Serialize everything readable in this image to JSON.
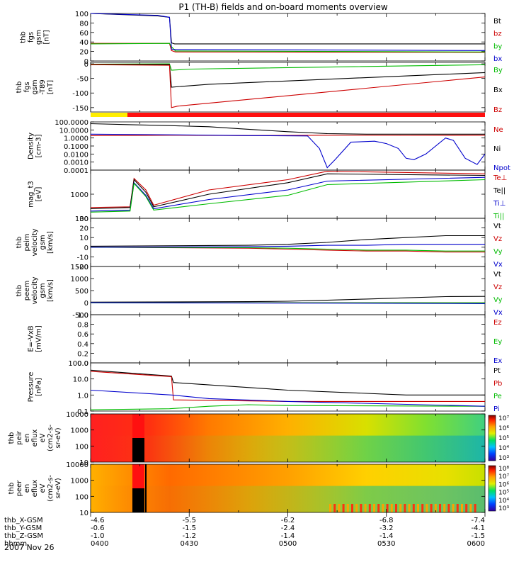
{
  "chart_data": {
    "type": "line",
    "title": "P1 (TH-B) fields and on-board moments overview",
    "date": "2007 Nov 26",
    "time_ticks": [
      "0400",
      "0430",
      "0500",
      "0530",
      "0600"
    ],
    "panels": [
      {
        "id": "fgs-gsm",
        "ylabel": [
          "thb",
          "fgs",
          "gsm",
          "[nT]"
        ],
        "scale": "linear",
        "ylim": [
          0,
          100
        ],
        "yticks": [
          "100",
          "80",
          "60",
          "40",
          "20",
          "0"
        ],
        "legend": [
          {
            "label": "Bt",
            "color": "#000000"
          },
          {
            "label": "bz",
            "color": "#cc0000"
          },
          {
            "label": "by",
            "color": "#00bb00"
          },
          {
            "label": "bx",
            "color": "#0000cc"
          }
        ],
        "series": [
          {
            "name": "Bt",
            "color": "#000000",
            "x": [
              0.0,
              0.17,
              0.2,
              0.205,
              0.213,
              1.0
            ],
            "y": [
              102,
              95,
              92,
              38,
              36,
              36
            ]
          },
          {
            "name": "bz",
            "color": "#cc0000",
            "x": [
              0.0,
              0.2,
              0.205,
              0.215,
              1.0
            ],
            "y": [
              37,
              37,
              22,
              19,
              18
            ]
          },
          {
            "name": "by",
            "color": "#00bb00",
            "x": [
              0.0,
              0.2,
              0.205,
              0.215,
              1.0
            ],
            "y": [
              36,
              37,
              30,
              21,
              19
            ]
          },
          {
            "name": "bx",
            "color": "#0000cc",
            "x": [
              0.0,
              0.17,
              0.2,
              0.205,
              0.215,
              1.0
            ],
            "y": [
              100,
              96,
              92,
              25,
              24,
              22
            ]
          }
        ]
      },
      {
        "id": "fgs-sm",
        "ylabel": [
          "thb",
          "fgs",
          "gsm",
          "-T89",
          "[nT]"
        ],
        "scale": "linear",
        "ylim": [
          -165,
          5
        ],
        "yticks": [
          "0",
          "-50",
          "-100",
          "-150"
        ],
        "legend": [
          {
            "label": "By",
            "color": "#00bb00"
          },
          {
            "label": "Bx",
            "color": "#000000"
          },
          {
            "label": "Bz",
            "color": "#cc0000"
          }
        ],
        "series": [
          {
            "name": "By",
            "color": "#00bb00",
            "x": [
              0.0,
              0.2,
              0.205,
              0.25,
              1.0
            ],
            "y": [
              -1,
              0,
              -22,
              -18,
              -3
            ]
          },
          {
            "name": "Bx",
            "color": "#000000",
            "x": [
              0.0,
              0.2,
              0.205,
              0.3,
              1.0
            ],
            "y": [
              -2,
              -2,
              -80,
              -70,
              -30
            ]
          },
          {
            "name": "Bz",
            "color": "#cc0000",
            "x": [
              0.0,
              0.2,
              0.205,
              0.22,
              1.0
            ],
            "y": [
              -3,
              -5,
              -150,
              -145,
              -45
            ]
          }
        ]
      },
      {
        "id": "density",
        "ylabel": [
          "Density",
          "[cm-3]"
        ],
        "scale": "log",
        "ylim": [
          0.0001,
          100
        ],
        "yticks": [
          "100.0000",
          "10.0000",
          "1.0000",
          "0.1000",
          "0.0100",
          "0.0010",
          "0.0001"
        ],
        "legend": [
          {
            "label": "Ne",
            "color": "#cc0000"
          },
          {
            "label": "Ni",
            "color": "#000000"
          },
          {
            "label": "Npot",
            "color": "#0000cc"
          }
        ],
        "series": [
          {
            "name": "Ni",
            "color": "#000000",
            "x": [
              0.0,
              0.1,
              0.2,
              0.3,
              0.4,
              0.5,
              0.6,
              0.7,
              0.8,
              0.9,
              1.0
            ],
            "y": [
              60,
              45,
              35,
              25,
              12,
              6,
              3.5,
              3,
              3,
              3,
              3
            ]
          },
          {
            "name": "Ne",
            "color": "#cc0000",
            "x": [
              0.0,
              0.2,
              0.4,
              0.6,
              0.8,
              1.0
            ],
            "y": [
              2,
              2.2,
              2,
              2.2,
              2.1,
              2.2
            ]
          },
          {
            "name": "Npot",
            "color": "#0000cc",
            "x": [
              0.0,
              0.2,
              0.4,
              0.55,
              0.58,
              0.6,
              0.62,
              0.66,
              0.72,
              0.75,
              0.78,
              0.8,
              0.82,
              0.85,
              0.9,
              0.92,
              0.95,
              0.98,
              1.0
            ],
            "y": [
              3,
              2.5,
              2,
              1.8,
              0.05,
              0.0002,
              0.002,
              0.3,
              0.4,
              0.2,
              0.05,
              0.003,
              0.002,
              0.01,
              1,
              0.5,
              0.003,
              0.0005,
              0.01
            ]
          }
        ]
      },
      {
        "id": "mom-temp",
        "ylabel": [
          "mag_t3",
          "[eV]"
        ],
        "scale": "log",
        "ylim": [
          100,
          10000
        ],
        "yticks": [
          "1000",
          "100"
        ],
        "legend": [
          {
            "label": "Te⊥",
            "color": "#cc0000"
          },
          {
            "label": "Te||",
            "color": "#000000"
          },
          {
            "label": "Ti⊥",
            "color": "#0000cc"
          },
          {
            "label": "Ti||",
            "color": "#00bb00"
          }
        ],
        "series": [
          {
            "name": "Te⊥",
            "color": "#cc0000",
            "x": [
              0.0,
              0.1,
              0.11,
              0.14,
              0.16,
              0.3,
              0.5,
              0.6,
              1.0
            ],
            "y": [
              280,
              300,
              4500,
              1500,
              350,
              1500,
              4000,
              9000,
              7000
            ]
          },
          {
            "name": "Te||",
            "color": "#000000",
            "x": [
              0.0,
              0.1,
              0.11,
              0.14,
              0.16,
              0.3,
              0.5,
              0.6,
              1.0
            ],
            "y": [
              250,
              280,
              4000,
              1200,
              300,
              1000,
              3000,
              7000,
              6000
            ]
          },
          {
            "name": "Ti⊥",
            "color": "#0000cc",
            "x": [
              0.0,
              0.1,
              0.11,
              0.14,
              0.16,
              0.3,
              0.5,
              0.6,
              1.0
            ],
            "y": [
              200,
              220,
              3000,
              900,
              250,
              600,
              1500,
              3500,
              5000
            ]
          },
          {
            "name": "Ti||",
            "color": "#00bb00",
            "x": [
              0.0,
              0.1,
              0.11,
              0.14,
              0.16,
              0.3,
              0.5,
              0.6,
              1.0
            ],
            "y": [
              180,
              200,
              2800,
              800,
              220,
              400,
              900,
              2500,
              4000
            ]
          }
        ]
      },
      {
        "id": "peim-gsm",
        "ylabel": [
          "thb",
          "peim",
          "velocity",
          "gsm",
          "[km/s]"
        ],
        "scale": "linear",
        "ylim": [
          -20,
          30
        ],
        "yticks": [
          "30",
          "20",
          "10",
          "0",
          "-10",
          "-20"
        ],
        "legend": [
          {
            "label": "Vt",
            "color": "#000000"
          },
          {
            "label": "Vz",
            "color": "#cc0000"
          },
          {
            "label": "Vy",
            "color": "#00bb00"
          },
          {
            "label": "Vx",
            "color": "#0000cc"
          }
        ],
        "series": [
          {
            "name": "Vt",
            "color": "#000000",
            "x": [
              0.0,
              0.4,
              0.5,
              0.6,
              0.7,
              0.8,
              0.9,
              1.0
            ],
            "y": [
              1,
              2,
              3,
              5,
              8,
              10,
              12,
              12
            ]
          },
          {
            "name": "Vz",
            "color": "#cc0000",
            "x": [
              0.0,
              0.4,
              0.5,
              0.6,
              0.7,
              0.8,
              0.9,
              1.0
            ],
            "y": [
              0,
              -1,
              -2,
              -3,
              -4,
              -4,
              -5,
              -5
            ]
          },
          {
            "name": "Vy",
            "color": "#00bb00",
            "x": [
              0.0,
              0.4,
              0.5,
              0.6,
              0.7,
              0.8,
              0.9,
              1.0
            ],
            "y": [
              0,
              -0.5,
              -1,
              -2,
              -3,
              -3,
              -4,
              -4
            ]
          },
          {
            "name": "Vx",
            "color": "#0000cc",
            "x": [
              0.0,
              0.4,
              0.5,
              0.6,
              0.7,
              0.8,
              0.9,
              1.0
            ],
            "y": [
              0,
              0.5,
              1,
              2,
              2,
              3,
              3,
              3
            ]
          }
        ]
      },
      {
        "id": "peem-gsm",
        "ylabel": [
          "thb",
          "peem",
          "velocity",
          "gsm",
          "[km/s]"
        ],
        "scale": "linear",
        "ylim": [
          -500,
          1500
        ],
        "yticks": [
          "1500",
          "1000",
          "500",
          "0",
          "-500"
        ],
        "legend": [
          {
            "label": "Vt",
            "color": "#000000"
          },
          {
            "label": "Vz",
            "color": "#cc0000"
          },
          {
            "label": "Vy",
            "color": "#00bb00"
          },
          {
            "label": "Vx",
            "color": "#0000cc"
          }
        ],
        "series": [
          {
            "name": "Vt",
            "color": "#000000",
            "x": [
              0.0,
              0.4,
              0.5,
              0.6,
              0.7,
              0.8,
              0.9,
              1.0
            ],
            "y": [
              20,
              40,
              60,
              100,
              150,
              200,
              250,
              260
            ]
          },
          {
            "name": "Vz",
            "color": "#cc0000",
            "x": [
              0.0,
              1.0
            ],
            "y": [
              0,
              0
            ]
          },
          {
            "name": "Vy",
            "color": "#00bb00",
            "x": [
              0.0,
              1.0
            ],
            "y": [
              -5,
              -5
            ]
          },
          {
            "name": "Vx",
            "color": "#0000cc",
            "x": [
              0.0,
              0.6,
              1.0
            ],
            "y": [
              0,
              -20,
              -40
            ]
          }
        ]
      },
      {
        "id": "efield",
        "ylabel": [
          "E=-VxB",
          "[mV/m]"
        ],
        "scale": "linear",
        "ylim": [
          0,
          1
        ],
        "yticks": [
          "1.0",
          "0.8",
          "0.6",
          "0.4",
          "0.2",
          "0.0"
        ],
        "legend": [
          {
            "label": "Ez",
            "color": "#cc0000"
          },
          {
            "label": "Ey",
            "color": "#00bb00"
          },
          {
            "label": "Ex",
            "color": "#0000cc"
          }
        ],
        "series": []
      },
      {
        "id": "pressure",
        "ylabel": [
          "Pressure",
          "[nPa]"
        ],
        "scale": "log",
        "ylim": [
          0.1,
          100
        ],
        "yticks": [
          "100.0",
          "10.0",
          "1.0",
          "0.1"
        ],
        "legend": [
          {
            "label": "Pt",
            "color": "#000000"
          },
          {
            "label": "Pb",
            "color": "#cc0000"
          },
          {
            "label": "Pe",
            "color": "#00bb00"
          },
          {
            "label": "Pi",
            "color": "#0000cc"
          }
        ],
        "series": [
          {
            "name": "Pt",
            "color": "#000000",
            "x": [
              0.0,
              0.205,
              0.21,
              0.5,
              0.8,
              1.0
            ],
            "y": [
              35,
              15,
              6,
              2,
              1,
              1
            ]
          },
          {
            "name": "Pb",
            "color": "#cc0000",
            "x": [
              0.0,
              0.205,
              0.21,
              0.5,
              1.0
            ],
            "y": [
              30,
              14,
              0.5,
              0.4,
              0.4
            ]
          },
          {
            "name": "Pe",
            "color": "#00bb00",
            "x": [
              0.0,
              0.2,
              0.3,
              0.4,
              0.5,
              1.0
            ],
            "y": [
              0.12,
              0.14,
              0.2,
              0.25,
              0.22,
              0.2
            ]
          },
          {
            "name": "Pi",
            "color": "#0000cc",
            "x": [
              0.0,
              0.205,
              0.3,
              0.5,
              1.0
            ],
            "y": [
              2,
              1,
              0.6,
              0.4,
              0.2
            ]
          }
        ]
      },
      {
        "id": "peir-spec",
        "ylabel": [
          "thb",
          "peir",
          "en",
          "eflux",
          "eV",
          "(cm2-s-",
          "sr-eV)"
        ],
        "scale": "log",
        "ylim": [
          10,
          10000
        ],
        "yticks": [
          "10000",
          "1000",
          "100",
          "10"
        ],
        "colorbar_ticks": [
          "10⁷",
          "10⁶",
          "10⁵",
          "10⁴",
          "10³"
        ]
      },
      {
        "id": "peer-spec",
        "ylabel": [
          "thb",
          "peer",
          "en",
          "eflux",
          "eV",
          "(cm2-s-",
          "sr-eV)"
        ],
        "scale": "log",
        "ylim": [
          10,
          10000
        ],
        "yticks": [
          "10000",
          "1000",
          "100",
          "10"
        ],
        "colorbar_ticks": [
          "10⁸",
          "10⁷",
          "10⁶",
          "10⁵",
          "10⁴",
          "10³"
        ]
      }
    ],
    "orbit": {
      "labels": [
        "thb_X-GSM",
        "thb_Y-GSM",
        "thb_Z-GSM",
        "hhmm"
      ],
      "rows": [
        [
          "-4.6",
          "-5.5",
          "-6.2",
          "-6.8",
          "-7.4"
        ],
        [
          "-0.6",
          "-1.5",
          "-2.4",
          "-3.2",
          "-4.1"
        ],
        [
          "-1.0",
          "-1.2",
          "-1.4",
          "-1.4",
          "-1.5"
        ],
        [
          "0400",
          "0430",
          "0500",
          "0530",
          "0600"
        ]
      ]
    }
  }
}
